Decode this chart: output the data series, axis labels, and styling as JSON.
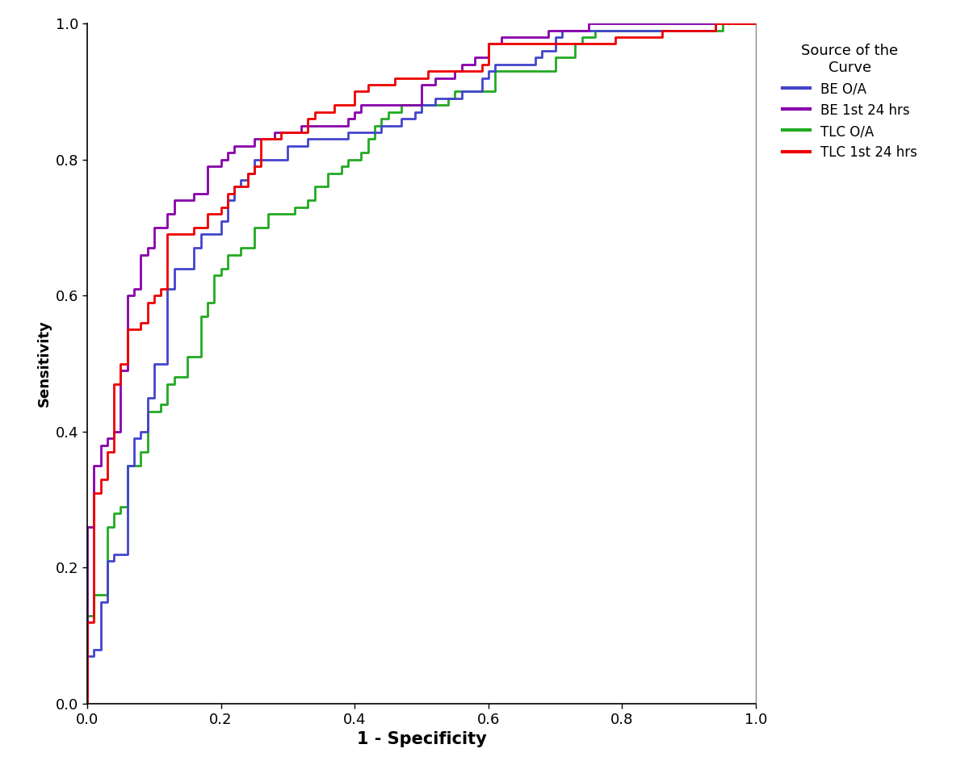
{
  "title": "",
  "xlabel": "1 - Specificity",
  "ylabel": "Sensitivity",
  "xlim": [
    0.0,
    1.0
  ],
  "ylim": [
    0.0,
    1.0
  ],
  "xticks": [
    0.0,
    0.2,
    0.4,
    0.6,
    0.8,
    1.0
  ],
  "yticks": [
    0.0,
    0.2,
    0.4,
    0.6,
    0.8,
    1.0
  ],
  "legend_title": "Source of the\nCurve",
  "legend_labels": [
    "BE O/A",
    "BE 1st 24 hrs",
    "TLC O/A",
    "TLC 1st 24 hrs"
  ],
  "colors": {
    "BE_OA": "#4444cc",
    "BE_24": "#8800aa",
    "TLC_OA": "#22aa22",
    "TLC_24": "#ee0000"
  },
  "background_color": "#ffffff",
  "line_width": 2.0,
  "font_size": 13,
  "xlabel_fontsize": 15,
  "ylabel_fontsize": 13,
  "legend_title_fontsize": 13,
  "legend_fontsize": 12
}
